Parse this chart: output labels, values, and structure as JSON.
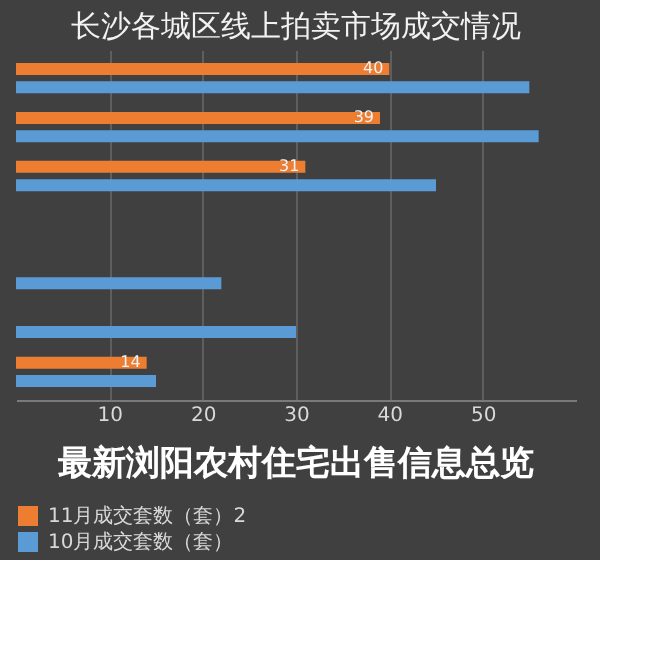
{
  "chart_data": {
    "type": "bar",
    "orientation": "horizontal",
    "title": "长沙各城区线上拍卖市场成交情况",
    "categories": [
      null,
      null,
      null,
      null,
      null,
      null,
      null
    ],
    "series": [
      {
        "name": "11月成交套数（套）2",
        "color": "#ed7d31",
        "values": [
          40,
          39,
          31,
          null,
          null,
          null,
          14
        ],
        "value_labels": [
          "40",
          "39",
          "31",
          null,
          null,
          null,
          "14"
        ]
      },
      {
        "name": "10月成交套数（套）",
        "color": "#5b9bd5",
        "values": [
          55,
          56,
          45,
          null,
          22,
          30,
          15
        ]
      }
    ],
    "xlim": [
      0,
      60
    ],
    "xticks": [
      10,
      20,
      30,
      40,
      50
    ],
    "grid": "x",
    "legend": "bottom",
    "tick_labels": "x",
    "annotations": [
      "最新浏阳农村住宅出售信息总览"
    ]
  }
}
